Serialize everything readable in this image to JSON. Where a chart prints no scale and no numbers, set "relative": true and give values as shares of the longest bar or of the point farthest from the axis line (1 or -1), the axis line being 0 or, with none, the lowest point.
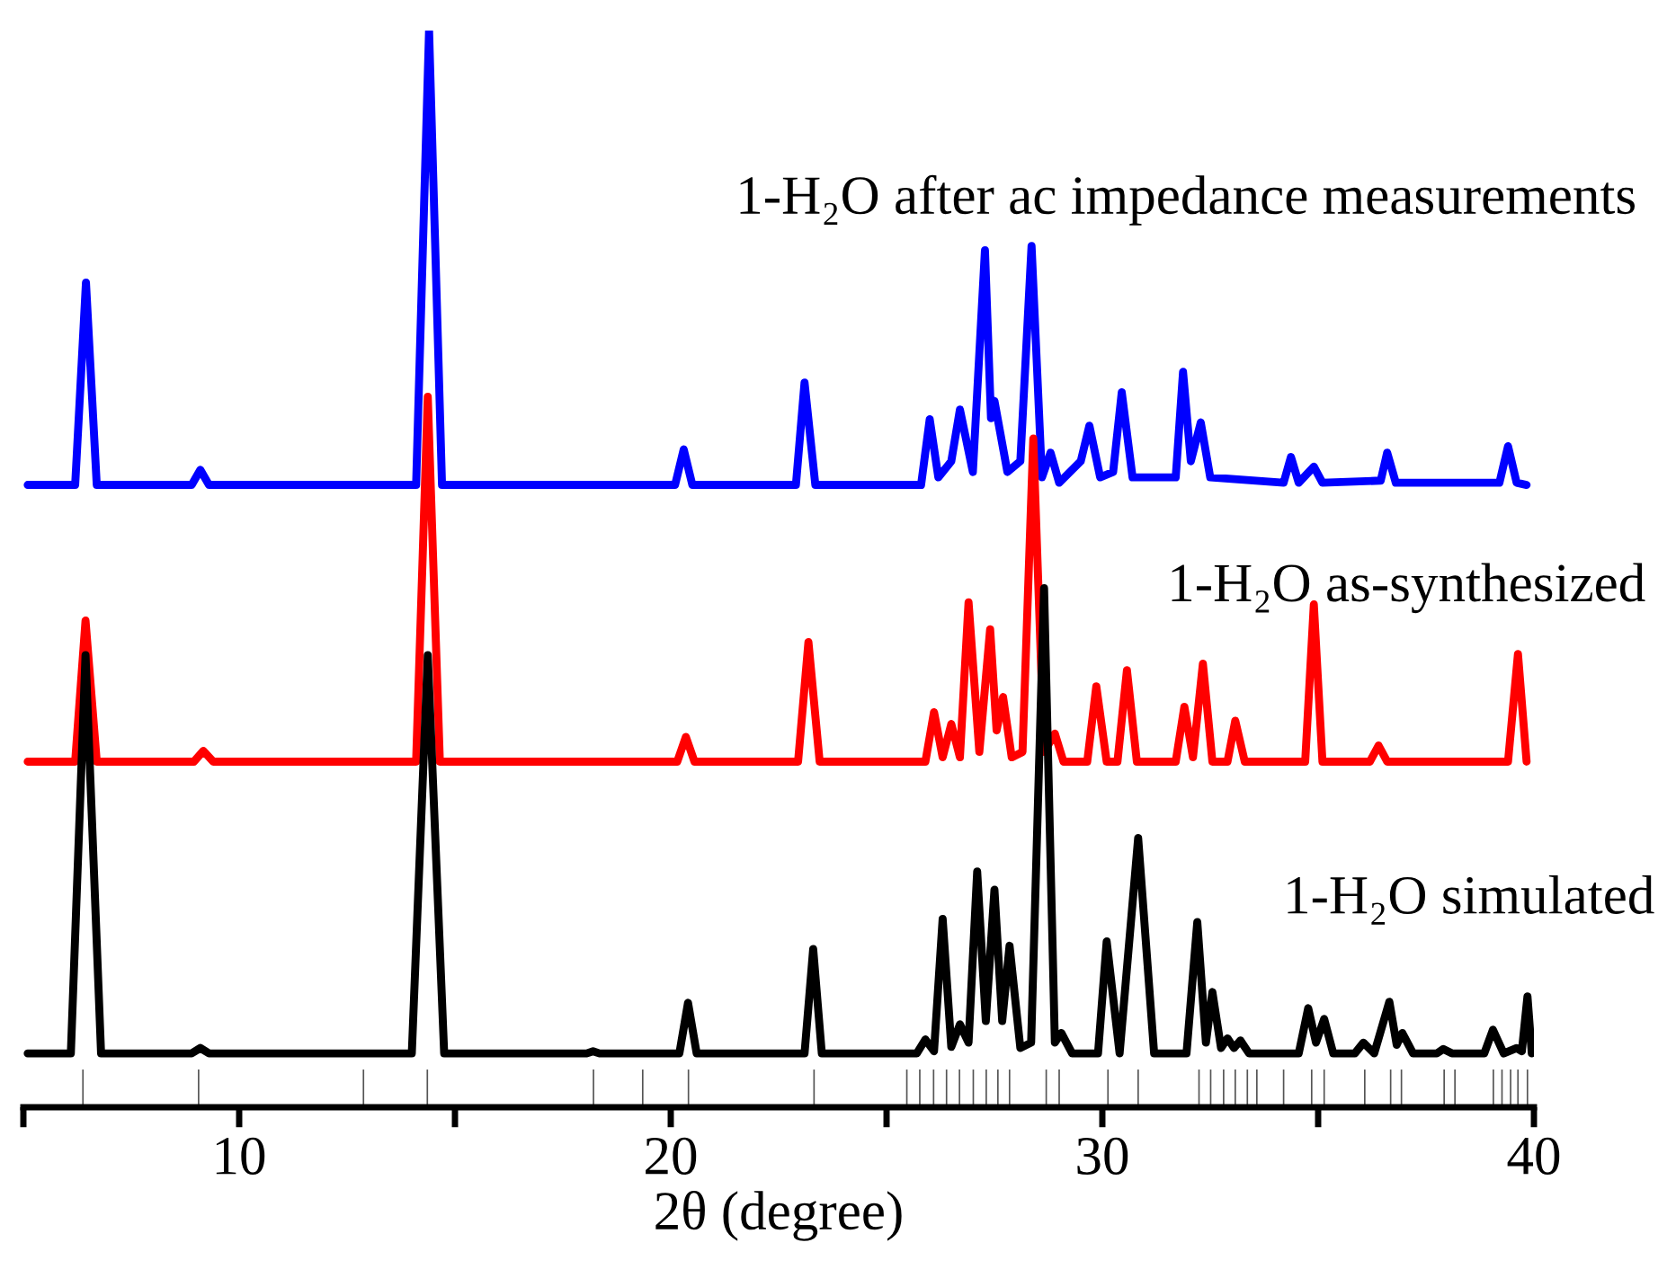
{
  "chart_data": {
    "type": "line",
    "relative": true,
    "xlabel": "2θ (degree)",
    "xlim": [
      5,
      40
    ],
    "xticks": [
      {
        "value": 5,
        "label": null
      },
      10,
      {
        "value": 15,
        "label": null
      },
      20,
      {
        "value": 25,
        "label": null
      },
      30,
      {
        "value": 35,
        "label": null
      },
      40
    ],
    "grid": false,
    "legend": false,
    "tick_labels": "x",
    "series": [
      {
        "name": "1-H₂O after ac impedance measurements",
        "color": "#0000ff",
        "x": [
          5.1,
          6.2,
          6.45,
          6.7,
          8.9,
          9.1,
          9.3,
          14.1,
          14.4,
          14.7,
          20.1,
          20.3,
          20.5,
          22.9,
          23.1,
          23.35,
          25.8,
          26.0,
          26.2,
          26.5,
          26.7,
          27.0,
          27.28,
          27.42,
          27.5,
          27.8,
          28.1,
          28.36,
          28.6,
          28.8,
          29.0,
          29.5,
          29.7,
          29.95,
          30.25,
          30.45,
          30.7,
          31.7,
          31.87,
          32.05,
          32.28,
          32.5,
          34.2,
          34.37,
          34.55,
          34.9,
          35.1,
          36.45,
          36.6,
          36.8,
          39.2,
          39.4,
          39.6,
          39.83
        ],
        "values": [
          0.578,
          0.578,
          0.766,
          0.578,
          0.578,
          0.592,
          0.578,
          0.578,
          1.0,
          0.578,
          0.578,
          0.611,
          0.578,
          0.578,
          0.673,
          0.578,
          0.578,
          0.639,
          0.585,
          0.6,
          0.648,
          0.59,
          0.796,
          0.64,
          0.656,
          0.59,
          0.6,
          0.8,
          0.585,
          0.608,
          0.58,
          0.6,
          0.633,
          0.585,
          0.59,
          0.664,
          0.585,
          0.585,
          0.683,
          0.6,
          0.636,
          0.585,
          0.58,
          0.604,
          0.58,
          0.595,
          0.58,
          0.582,
          0.608,
          0.58,
          0.58,
          0.614,
          0.58,
          0.578
        ]
      },
      {
        "name": "1-H₂O as-synthesized",
        "color": "#ff0000",
        "x": [
          5.1,
          6.2,
          6.44,
          6.7,
          8.95,
          9.17,
          9.4,
          14.1,
          14.37,
          14.65,
          20.15,
          20.35,
          20.55,
          22.95,
          23.19,
          23.45,
          25.9,
          26.1,
          26.3,
          26.5,
          26.7,
          26.9,
          27.15,
          27.4,
          27.55,
          27.7,
          27.9,
          28.15,
          28.4,
          28.65,
          28.9,
          29.1,
          29.65,
          29.86,
          30.1,
          30.35,
          30.57,
          30.8,
          31.7,
          31.9,
          32.1,
          32.33,
          32.55,
          32.9,
          33.08,
          33.3,
          34.7,
          34.9,
          35.1,
          36.2,
          36.4,
          36.6,
          39.4,
          39.63,
          39.83
        ],
        "values": [
          0.321,
          0.321,
          0.452,
          0.321,
          0.321,
          0.331,
          0.321,
          0.321,
          0.66,
          0.321,
          0.321,
          0.344,
          0.321,
          0.321,
          0.432,
          0.321,
          0.321,
          0.367,
          0.325,
          0.356,
          0.325,
          0.469,
          0.33,
          0.444,
          0.35,
          0.381,
          0.325,
          0.33,
          0.621,
          0.33,
          0.347,
          0.321,
          0.321,
          0.391,
          0.321,
          0.321,
          0.406,
          0.321,
          0.321,
          0.372,
          0.325,
          0.412,
          0.321,
          0.321,
          0.359,
          0.321,
          0.321,
          0.467,
          0.321,
          0.321,
          0.336,
          0.321,
          0.321,
          0.421,
          0.321
        ]
      },
      {
        "name": "1-H₂O simulated",
        "color": "#000000",
        "x": [
          5.1,
          6.1,
          6.44,
          6.8,
          8.9,
          9.1,
          9.3,
          14.0,
          14.37,
          14.75,
          18.05,
          18.2,
          18.35,
          20.2,
          20.4,
          20.6,
          23.1,
          23.3,
          23.5,
          25.7,
          25.9,
          26.1,
          26.3,
          26.5,
          26.7,
          26.9,
          27.1,
          27.3,
          27.5,
          27.68,
          27.85,
          28.1,
          28.35,
          28.65,
          28.9,
          29.05,
          29.3,
          29.9,
          30.1,
          30.4,
          30.83,
          31.2,
          31.95,
          32.2,
          32.4,
          32.55,
          32.75,
          32.9,
          33.05,
          33.2,
          33.4,
          34.55,
          34.77,
          34.95,
          35.14,
          35.35,
          35.85,
          36.05,
          36.3,
          36.65,
          36.82,
          36.95,
          37.2,
          37.75,
          37.9,
          38.1,
          38.85,
          39.05,
          39.3,
          39.6,
          39.72,
          39.85,
          39.95
        ],
        "values": [
          0.05,
          0.05,
          0.42,
          0.05,
          0.05,
          0.055,
          0.05,
          0.05,
          0.42,
          0.05,
          0.05,
          0.052,
          0.05,
          0.05,
          0.097,
          0.05,
          0.05,
          0.147,
          0.05,
          0.05,
          0.063,
          0.052,
          0.175,
          0.056,
          0.077,
          0.06,
          0.219,
          0.08,
          0.202,
          0.08,
          0.15,
          0.055,
          0.06,
          0.482,
          0.06,
          0.069,
          0.05,
          0.05,
          0.154,
          0.05,
          0.25,
          0.05,
          0.05,
          0.172,
          0.06,
          0.107,
          0.055,
          0.064,
          0.055,
          0.062,
          0.05,
          0.05,
          0.092,
          0.06,
          0.082,
          0.05,
          0.05,
          0.06,
          0.05,
          0.098,
          0.058,
          0.069,
          0.05,
          0.05,
          0.054,
          0.05,
          0.05,
          0.072,
          0.05,
          0.055,
          0.052,
          0.103,
          0.05
        ]
      },
      {
        "type": "bar",
        "color": "#555555",
        "x": [
          6.38,
          9.06,
          12.88,
          14.36,
          18.21,
          19.35,
          20.41,
          23.32,
          25.47,
          25.77,
          26.09,
          26.39,
          26.69,
          27.01,
          27.31,
          27.58,
          27.85,
          28.7,
          29.0,
          30.13,
          30.83,
          32.24,
          32.51,
          32.81,
          33.08,
          33.36,
          33.58,
          34.2,
          34.85,
          35.14,
          36.08,
          36.68,
          36.93,
          37.92,
          38.17,
          39.06,
          39.26,
          39.46,
          39.63,
          39.85
        ],
        "values": [
          0.035,
          0.035,
          0.035,
          0.035,
          0.035,
          0.035,
          0.035,
          0.035,
          0.035,
          0.035,
          0.035,
          0.035,
          0.035,
          0.035,
          0.035,
          0.035,
          0.035,
          0.035,
          0.035,
          0.035,
          0.035,
          0.035,
          0.035,
          0.035,
          0.035,
          0.035,
          0.035,
          0.035,
          0.035,
          0.035,
          0.035,
          0.035,
          0.035,
          0.035,
          0.035,
          0.035,
          0.035,
          0.035,
          0.035,
          0.035
        ]
      }
    ]
  }
}
